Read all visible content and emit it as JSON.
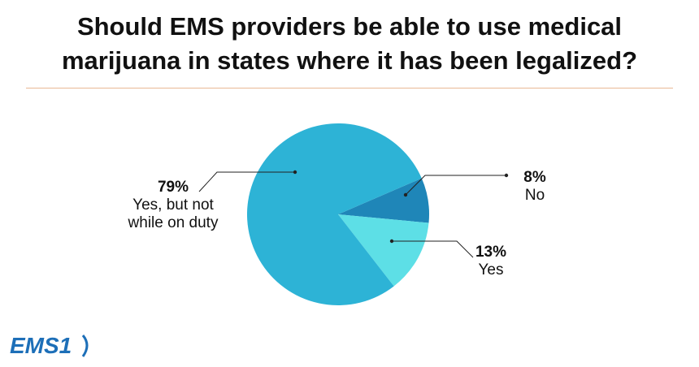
{
  "chart_data": {
    "type": "pie",
    "title": "Should EMS providers be able to use medical marijuana in states where it has been legalized?",
    "title_lines": [
      "Should EMS providers be able to use medical",
      "marijuana in states where it has been legalized?"
    ],
    "slices": [
      {
        "label": "No",
        "value": 8,
        "value_label": "8%",
        "color": "#1f86b8"
      },
      {
        "label": "Yes",
        "value": 13,
        "value_label": "13%",
        "color": "#5ddfe6"
      },
      {
        "label": "Yes, but not while on duty",
        "label_lines": [
          "Yes, but not",
          "while on duty"
        ],
        "value": 79,
        "value_label": "79%",
        "color": "#2db3d6"
      }
    ]
  },
  "logo": {
    "text": "EMS1",
    "color": "#1d6fb8"
  }
}
